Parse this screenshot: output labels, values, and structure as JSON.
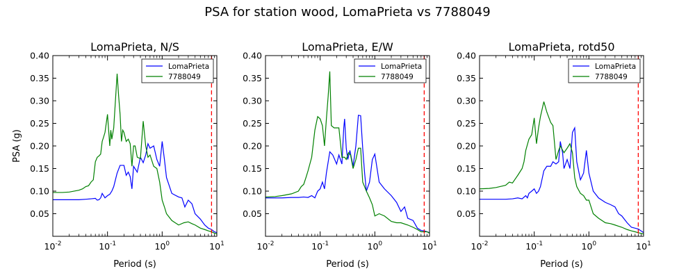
{
  "figure": {
    "title": "PSA for station wood, LomaPrieta vs 7788049"
  },
  "colors": {
    "series_1": "#0000ff",
    "series_2": "#008000",
    "marker_line": "#ff0000"
  },
  "chart_data": [
    {
      "type": "line",
      "title": "LomaPrieta, N/S",
      "xlabel": "Period (s)",
      "ylabel": "PSA (g)",
      "xscale": "log",
      "xlim": [
        0.01,
        10
      ],
      "ylim": [
        0.0,
        0.4
      ],
      "xticks": [
        "10^-2",
        "10^-1",
        "10^0",
        "10^1"
      ],
      "yticks": [
        "0.05",
        "0.10",
        "0.15",
        "0.20",
        "0.25",
        "0.30",
        "0.35",
        "0.40"
      ],
      "legend_position": "top-right",
      "vline_x": 8.0,
      "series": [
        {
          "name": "LomaPrieta",
          "x": [
            0.01,
            0.02,
            0.03,
            0.04,
            0.05,
            0.06,
            0.065,
            0.07,
            0.075,
            0.08,
            0.09,
            0.1,
            0.11,
            0.12,
            0.13,
            0.15,
            0.17,
            0.2,
            0.22,
            0.24,
            0.26,
            0.28,
            0.3,
            0.35,
            0.4,
            0.45,
            0.5,
            0.55,
            0.6,
            0.7,
            0.8,
            0.9,
            1.0,
            1.1,
            1.2,
            1.5,
            2.0,
            2.3,
            2.6,
            3.0,
            3.5,
            4.0,
            5.0,
            6.0,
            7.0,
            8.0,
            9.0,
            10.0
          ],
          "y": [
            0.081,
            0.081,
            0.081,
            0.082,
            0.083,
            0.084,
            0.08,
            0.081,
            0.085,
            0.095,
            0.085,
            0.09,
            0.093,
            0.1,
            0.11,
            0.14,
            0.157,
            0.157,
            0.135,
            0.142,
            0.132,
            0.105,
            0.155,
            0.142,
            0.175,
            0.163,
            0.18,
            0.205,
            0.195,
            0.2,
            0.17,
            0.155,
            0.21,
            0.17,
            0.13,
            0.095,
            0.087,
            0.085,
            0.065,
            0.08,
            0.072,
            0.05,
            0.038,
            0.025,
            0.018,
            0.015,
            0.01,
            0.008
          ]
        },
        {
          "name": "7788049",
          "x": [
            0.01,
            0.015,
            0.02,
            0.03,
            0.035,
            0.04,
            0.045,
            0.05,
            0.055,
            0.06,
            0.065,
            0.07,
            0.075,
            0.08,
            0.085,
            0.09,
            0.1,
            0.11,
            0.115,
            0.12,
            0.13,
            0.15,
            0.16,
            0.17,
            0.18,
            0.19,
            0.2,
            0.22,
            0.24,
            0.26,
            0.28,
            0.3,
            0.32,
            0.35,
            0.4,
            0.45,
            0.5,
            0.55,
            0.6,
            0.7,
            0.8,
            0.9,
            1.0,
            1.1,
            1.2,
            1.5,
            2.0,
            2.5,
            3.0,
            3.5,
            4.0,
            5.0,
            6.0,
            7.0,
            8.0,
            9.0,
            10.0
          ],
          "y": [
            0.097,
            0.097,
            0.098,
            0.102,
            0.105,
            0.11,
            0.112,
            0.12,
            0.125,
            0.165,
            0.175,
            0.178,
            0.182,
            0.21,
            0.22,
            0.23,
            0.27,
            0.2,
            0.235,
            0.215,
            0.24,
            0.36,
            0.31,
            0.27,
            0.21,
            0.235,
            0.23,
            0.21,
            0.215,
            0.205,
            0.155,
            0.2,
            0.2,
            0.175,
            0.172,
            0.255,
            0.2,
            0.175,
            0.18,
            0.155,
            0.15,
            0.12,
            0.08,
            0.065,
            0.05,
            0.035,
            0.025,
            0.03,
            0.032,
            0.028,
            0.025,
            0.018,
            0.015,
            0.012,
            0.01,
            0.007,
            0.005
          ]
        }
      ]
    },
    {
      "type": "line",
      "title": "LomaPrieta, E/W",
      "xlabel": "Period (s)",
      "ylabel": "",
      "xscale": "log",
      "xlim": [
        0.01,
        10
      ],
      "ylim": [
        0.0,
        0.4
      ],
      "xticks": [
        "10^-2",
        "10^-1",
        "10^0",
        "10^1"
      ],
      "yticks": [
        "0.05",
        "0.10",
        "0.15",
        "0.20",
        "0.25",
        "0.30",
        "0.35",
        "0.40"
      ],
      "legend_position": "top-right",
      "vline_x": 8.0,
      "series": [
        {
          "name": "LomaPrieta",
          "x": [
            0.01,
            0.02,
            0.03,
            0.04,
            0.05,
            0.06,
            0.07,
            0.08,
            0.09,
            0.1,
            0.11,
            0.12,
            0.13,
            0.15,
            0.17,
            0.2,
            0.22,
            0.25,
            0.27,
            0.28,
            0.3,
            0.32,
            0.35,
            0.4,
            0.45,
            0.5,
            0.55,
            0.6,
            0.65,
            0.7,
            0.8,
            0.9,
            1.0,
            1.2,
            1.5,
            2.0,
            2.5,
            3.0,
            3.5,
            4.0,
            5.0,
            6.0,
            7.0,
            8.0,
            9.0,
            10.0
          ],
          "y": [
            0.085,
            0.085,
            0.086,
            0.086,
            0.087,
            0.086,
            0.09,
            0.085,
            0.1,
            0.105,
            0.12,
            0.105,
            0.14,
            0.187,
            0.18,
            0.16,
            0.18,
            0.16,
            0.24,
            0.26,
            0.195,
            0.17,
            0.19,
            0.155,
            0.2,
            0.268,
            0.267,
            0.195,
            0.14,
            0.1,
            0.12,
            0.17,
            0.182,
            0.12,
            0.105,
            0.09,
            0.075,
            0.055,
            0.065,
            0.04,
            0.035,
            0.018,
            0.013,
            0.012,
            0.01,
            0.008
          ]
        },
        {
          "name": "7788049",
          "x": [
            0.01,
            0.015,
            0.02,
            0.03,
            0.04,
            0.045,
            0.05,
            0.055,
            0.06,
            0.07,
            0.08,
            0.09,
            0.1,
            0.11,
            0.12,
            0.13,
            0.14,
            0.15,
            0.16,
            0.18,
            0.2,
            0.22,
            0.25,
            0.28,
            0.3,
            0.33,
            0.36,
            0.4,
            0.45,
            0.5,
            0.55,
            0.6,
            0.7,
            0.8,
            0.9,
            1.0,
            1.2,
            1.5,
            2.0,
            2.5,
            3.0,
            4.0,
            5.0,
            6.0,
            7.0,
            8.0,
            9.0,
            10.0
          ],
          "y": [
            0.087,
            0.088,
            0.09,
            0.094,
            0.1,
            0.11,
            0.115,
            0.13,
            0.145,
            0.175,
            0.235,
            0.265,
            0.26,
            0.245,
            0.2,
            0.26,
            0.31,
            0.365,
            0.245,
            0.24,
            0.24,
            0.24,
            0.175,
            0.175,
            0.17,
            0.185,
            0.18,
            0.15,
            0.17,
            0.195,
            0.195,
            0.12,
            0.1,
            0.085,
            0.07,
            0.045,
            0.05,
            0.045,
            0.033,
            0.03,
            0.03,
            0.025,
            0.02,
            0.015,
            0.01,
            0.01,
            0.01,
            0.007
          ]
        }
      ]
    },
    {
      "type": "line",
      "title": "LomaPrieta, rotd50",
      "xlabel": "Period (s)",
      "ylabel": "",
      "xscale": "log",
      "xlim": [
        0.01,
        10
      ],
      "ylim": [
        0.0,
        0.4
      ],
      "xticks": [
        "10^-2",
        "10^-1",
        "10^0",
        "10^1"
      ],
      "yticks": [
        "0.05",
        "0.10",
        "0.15",
        "0.20",
        "0.25",
        "0.30",
        "0.35",
        "0.40"
      ],
      "legend_position": "top-right",
      "vline_x": 8.0,
      "series": [
        {
          "name": "LomaPrieta",
          "x": [
            0.01,
            0.02,
            0.03,
            0.04,
            0.05,
            0.06,
            0.07,
            0.075,
            0.08,
            0.09,
            0.1,
            0.11,
            0.12,
            0.13,
            0.15,
            0.17,
            0.2,
            0.22,
            0.25,
            0.28,
            0.3,
            0.33,
            0.35,
            0.4,
            0.45,
            0.5,
            0.55,
            0.6,
            0.7,
            0.8,
            0.9,
            1.0,
            1.2,
            1.5,
            2.0,
            2.5,
            3.0,
            3.5,
            4.0,
            5.0,
            6.0,
            7.0,
            8.0,
            9.0,
            10.0
          ],
          "y": [
            0.082,
            0.082,
            0.082,
            0.083,
            0.085,
            0.083,
            0.09,
            0.085,
            0.095,
            0.1,
            0.105,
            0.095,
            0.1,
            0.11,
            0.145,
            0.155,
            0.155,
            0.165,
            0.16,
            0.165,
            0.21,
            0.185,
            0.15,
            0.17,
            0.15,
            0.23,
            0.24,
            0.165,
            0.125,
            0.14,
            0.19,
            0.14,
            0.1,
            0.085,
            0.075,
            0.07,
            0.065,
            0.05,
            0.045,
            0.03,
            0.02,
            0.018,
            0.016,
            0.012,
            0.008
          ]
        },
        {
          "name": "7788049",
          "x": [
            0.01,
            0.015,
            0.02,
            0.03,
            0.035,
            0.04,
            0.05,
            0.06,
            0.065,
            0.07,
            0.08,
            0.09,
            0.1,
            0.11,
            0.12,
            0.13,
            0.15,
            0.17,
            0.2,
            0.22,
            0.25,
            0.28,
            0.3,
            0.35,
            0.4,
            0.45,
            0.5,
            0.55,
            0.6,
            0.7,
            0.8,
            0.9,
            1.0,
            1.2,
            1.5,
            2.0,
            2.5,
            3.0,
            4.0,
            5.0,
            6.0,
            7.0,
            8.0,
            10.0
          ],
          "y": [
            0.105,
            0.106,
            0.108,
            0.113,
            0.12,
            0.118,
            0.135,
            0.15,
            0.165,
            0.19,
            0.215,
            0.225,
            0.262,
            0.205,
            0.24,
            0.265,
            0.298,
            0.275,
            0.252,
            0.245,
            0.17,
            0.19,
            0.2,
            0.185,
            0.195,
            0.205,
            0.185,
            0.13,
            0.11,
            0.095,
            0.09,
            0.08,
            0.08,
            0.05,
            0.04,
            0.03,
            0.028,
            0.025,
            0.02,
            0.015,
            0.012,
            0.01,
            0.008,
            0.005
          ]
        }
      ]
    }
  ]
}
